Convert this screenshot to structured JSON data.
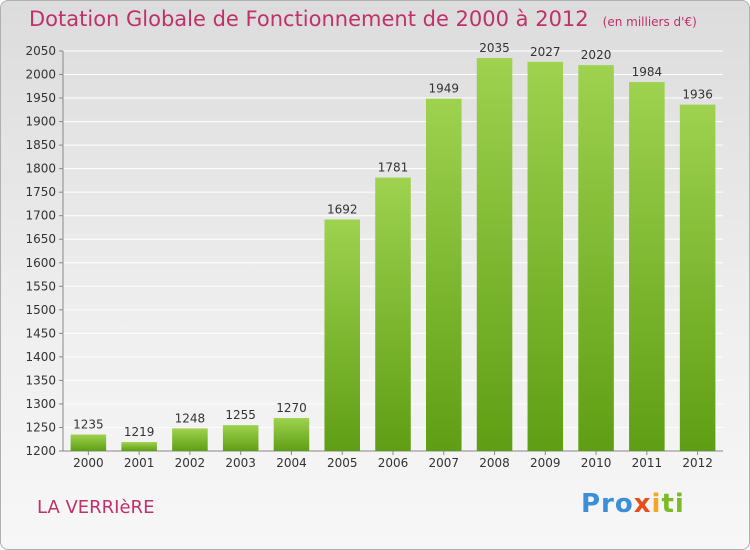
{
  "title": "Dotation Globale de Fonctionnement de 2000 à 2012",
  "subtitle": "(en milliers d'€)",
  "commune": "LA VERRIèRE",
  "logo": {
    "p1": "Pro",
    "p2": "x",
    "p3": "i",
    "p4": "ti"
  },
  "colors": {
    "bar_top": "#9ed24f",
    "bar_bottom": "#5f9e14",
    "title": "#c0306a",
    "grid": "#ffffff"
  },
  "chart_data": {
    "type": "bar",
    "title": "Dotation Globale de Fonctionnement de 2000 à 2012",
    "subtitle": "(en milliers d'€)",
    "categories": [
      "2000",
      "2001",
      "2002",
      "2003",
      "2004",
      "2005",
      "2006",
      "2007",
      "2008",
      "2009",
      "2010",
      "2011",
      "2012"
    ],
    "values": [
      1235,
      1219,
      1248,
      1255,
      1270,
      1692,
      1781,
      1949,
      2035,
      2027,
      2020,
      1984,
      1936
    ],
    "ylim": [
      1200,
      2050
    ],
    "yticks": [
      1200,
      1250,
      1300,
      1350,
      1400,
      1450,
      1500,
      1550,
      1600,
      1650,
      1700,
      1750,
      1800,
      1850,
      1900,
      1950,
      2000,
      2050
    ],
    "grid": true,
    "legend": "none"
  }
}
